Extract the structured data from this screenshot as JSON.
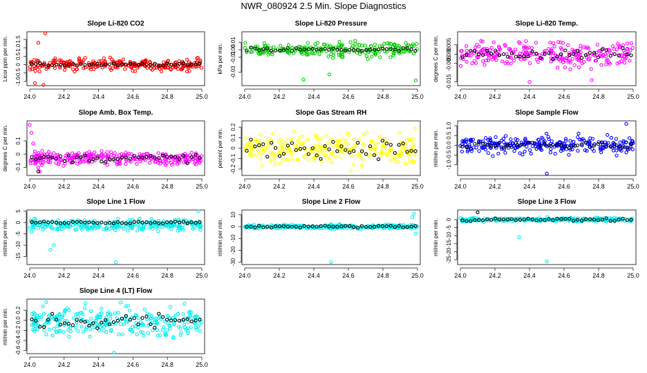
{
  "page_title": "NWR_080924  2.5 Min. Slope Diagnostics",
  "colors": {
    "black": "#000000",
    "red": "#ff0000",
    "green": "#00cc00",
    "magenta": "#ff00ff",
    "yellow": "#ffff00",
    "blue": "#0000ff",
    "cyan": "#00eeee"
  },
  "chart_data": [
    {
      "id": "p1",
      "type": "scatter",
      "title": "Slope Li-820 CO2",
      "ylabel": "Licor ppm per min.",
      "xlim": [
        24.0,
        25.0
      ],
      "ylim": [
        -1.25,
        1.95
      ],
      "xticks": [
        24.0,
        24.2,
        24.4,
        24.6,
        24.8,
        25.0
      ],
      "xtick_labels": [
        "24.0",
        "24.2",
        "24.4",
        "24.6",
        "24.8",
        "25.0"
      ],
      "yticks": [
        -1.0,
        -0.5,
        0.0,
        0.5,
        1.0,
        1.5
      ],
      "ytick_labels": [
        "-1.0",
        "-0.5",
        "0",
        "0.5",
        "1.0",
        "1.5"
      ],
      "series": [
        {
          "name": "all",
          "color": "red",
          "center": 0.0,
          "spread": 0.25,
          "n": 260,
          "x": [
            24.09,
            24.03,
            24.05,
            24.08
          ],
          "y": [
            1.85,
            -1.1,
            1.3,
            -1.2
          ]
        },
        {
          "name": "avg",
          "color": "black",
          "center": 0.0,
          "spread": 0.05,
          "n": 42
        }
      ]
    },
    {
      "id": "p2",
      "type": "scatter",
      "title": "Slope Li-820 Pressure",
      "ylabel": "kPa per min.",
      "xlim": [
        24.0,
        25.0
      ],
      "ylim": [
        -0.048,
        0.024
      ],
      "xticks": [
        24.0,
        24.2,
        24.4,
        24.6,
        24.8,
        25.0
      ],
      "xtick_labels": [
        "24.0",
        "24.2",
        "24.4",
        "24.6",
        "24.8",
        "25.0"
      ],
      "yticks": [
        -0.03,
        -0.01,
        0.0,
        0.01
      ],
      "ytick_labels": [
        "-0.03",
        "-0.01",
        "0.00",
        "0.01"
      ],
      "series": [
        {
          "name": "all",
          "color": "green",
          "center": 0.0,
          "spread": 0.007,
          "n": 220,
          "x": [
            24.34,
            24.99,
            24.49
          ],
          "y": [
            -0.04,
            -0.041,
            -0.033
          ]
        },
        {
          "name": "avg",
          "color": "black",
          "center": 0.0,
          "spread": 0.002,
          "n": 42
        }
      ]
    },
    {
      "id": "p3",
      "type": "scatter",
      "title": "Slope Li-820 Temp.",
      "ylabel": "degrees C per min.",
      "xlim": [
        24.0,
        25.0
      ],
      "ylim": [
        -0.017,
        0.012
      ],
      "xticks": [
        24.0,
        24.2,
        24.4,
        24.6,
        24.8,
        25.0
      ],
      "xtick_labels": [
        "24.0",
        "24.2",
        "24.4",
        "24.6",
        "24.8",
        "25.0"
      ],
      "yticks": [
        -0.015,
        -0.005,
        0.0,
        0.005
      ],
      "ytick_labels": [
        "-0.015",
        "-0.005",
        "0.000",
        "0.005"
      ],
      "series": [
        {
          "name": "all",
          "color": "magenta",
          "center": 0.0,
          "spread": 0.0045,
          "n": 260,
          "x": [
            24.4,
            24.76
          ],
          "y": [
            -0.015,
            -0.014
          ]
        },
        {
          "name": "avg",
          "color": "black",
          "center": 0.0,
          "spread": 0.002,
          "n": 42
        }
      ]
    },
    {
      "id": "p4",
      "type": "scatter",
      "title": "Slope Amb. Box Temp.",
      "ylabel": "degrees C per min.",
      "xlim": [
        24.0,
        25.0
      ],
      "ylim": [
        -0.16,
        0.25
      ],
      "xticks": [
        24.0,
        24.2,
        24.4,
        24.6,
        24.8,
        25.0
      ],
      "xtick_labels": [
        "24.0",
        "24.2",
        "24.4",
        "24.6",
        "24.8",
        "25.0"
      ],
      "yticks": [
        -0.1,
        0.0,
        0.1
      ],
      "ytick_labels": [
        "-0.1",
        "0",
        "0.1"
      ],
      "series": [
        {
          "name": "all",
          "color": "magenta",
          "center": -0.03,
          "spread": 0.035,
          "n": 280,
          "x": [
            24.0,
            24.01,
            24.02,
            24.03,
            24.04,
            24.05,
            24.06,
            24.07,
            24.08
          ],
          "y": [
            0.22,
            0.16,
            0.08,
            0.02,
            -0.05,
            -0.1,
            -0.13,
            -0.08,
            -0.06
          ]
        },
        {
          "name": "avg",
          "color": "black",
          "center": -0.03,
          "spread": 0.02,
          "n": 42,
          "x": [
            24.05
          ],
          "y": [
            -0.13
          ]
        }
      ]
    },
    {
      "id": "p5",
      "type": "scatter",
      "title": "Slope Gas Stream RH",
      "ylabel": "percent per min.",
      "xlim": [
        24.0,
        25.0
      ],
      "ylim": [
        -0.26,
        0.26
      ],
      "xticks": [
        24.0,
        24.2,
        24.4,
        24.6,
        24.8,
        25.0
      ],
      "xtick_labels": [
        "24.0",
        "24.2",
        "24.4",
        "24.6",
        "24.8",
        "25.0"
      ],
      "yticks": [
        -0.2,
        -0.1,
        0.0,
        0.1,
        0.2
      ],
      "ytick_labels": [
        "-0.2",
        "-0.1",
        "0",
        "0.1",
        "0.2"
      ],
      "series": [
        {
          "name": "all",
          "color": "yellow",
          "center": 0.0,
          "spread": 0.1,
          "n": 260
        },
        {
          "name": "avg",
          "color": "black",
          "center": 0.0,
          "spread": 0.06,
          "n": 42
        }
      ]
    },
    {
      "id": "p6",
      "type": "scatter",
      "title": "Slope Sample Flow",
      "ylabel": "ml/min per min.",
      "xlim": [
        24.0,
        25.0
      ],
      "ylim": [
        -1.55,
        1.25
      ],
      "xticks": [
        24.0,
        24.2,
        24.4,
        24.6,
        24.8,
        25.0
      ],
      "xtick_labels": [
        "24.0",
        "24.2",
        "24.4",
        "24.6",
        "24.8",
        "25.0"
      ],
      "yticks": [
        -1.0,
        -0.5,
        0.0,
        0.5,
        1.0
      ],
      "ytick_labels": [
        "-1.0",
        "-0.5",
        "0.0",
        "0.5",
        "1.0"
      ],
      "series": [
        {
          "name": "all",
          "color": "blue",
          "center": 0.0,
          "spread": 0.3,
          "n": 260,
          "x": [
            24.96,
            24.5
          ],
          "y": [
            1.1,
            -1.45
          ]
        },
        {
          "name": "avg",
          "color": "black",
          "center": 0.0,
          "spread": 0.12,
          "n": 42
        }
      ]
    },
    {
      "id": "p7",
      "type": "scatter",
      "title": "Slope Line 1 Flow",
      "ylabel": "ml/min per min.",
      "xlim": [
        24.0,
        25.0
      ],
      "ylim": [
        -18.5,
        5.5
      ],
      "xticks": [
        24.0,
        24.2,
        24.4,
        24.6,
        24.8,
        25.0
      ],
      "xtick_labels": [
        "24.0",
        "24.2",
        "24.4",
        "24.6",
        "24.8",
        "25.0"
      ],
      "yticks": [
        -15,
        -10,
        -5,
        0,
        5
      ],
      "ytick_labels": [
        "-15",
        "-10",
        "-5",
        "0",
        "5"
      ],
      "series": [
        {
          "name": "all",
          "color": "cyan",
          "center": -1.0,
          "spread": 1.8,
          "n": 280,
          "x": [
            24.5,
            24.12,
            24.14,
            24.98,
            24.01
          ],
          "y": [
            -17.5,
            -12,
            -10,
            5,
            -4
          ]
        },
        {
          "name": "avg",
          "color": "black",
          "center": 0.0,
          "spread": 0.3,
          "n": 42
        }
      ]
    },
    {
      "id": "p8",
      "type": "scatter",
      "title": "Slope Line 2 Flow",
      "ylabel": "ml/min per min.",
      "xlim": [
        24.0,
        25.0
      ],
      "ylim": [
        -32,
        14
      ],
      "xticks": [
        24.0,
        24.2,
        24.4,
        24.6,
        24.8,
        25.0
      ],
      "xtick_labels": [
        "24.0",
        "24.2",
        "24.4",
        "24.6",
        "24.8",
        "25.0"
      ],
      "yticks": [
        -30,
        -20,
        -10,
        0,
        10
      ],
      "ytick_labels": [
        "-30",
        "-20",
        "-10",
        "0",
        "10"
      ],
      "series": [
        {
          "name": "all",
          "color": "cyan",
          "center": 0.0,
          "spread": 1.2,
          "n": 280,
          "x": [
            24.5,
            24.97,
            24.98,
            24.99
          ],
          "y": [
            -30,
            8,
            11,
            -6
          ]
        },
        {
          "name": "avg",
          "color": "black",
          "center": 0.0,
          "spread": 0.6,
          "n": 42
        }
      ]
    },
    {
      "id": "p9",
      "type": "scatter",
      "title": "Slope Line 3 Flow",
      "ylabel": "ml/min per min.",
      "xlim": [
        24.0,
        25.0
      ],
      "ylim": [
        -28,
        6
      ],
      "xticks": [
        24.0,
        24.2,
        24.4,
        24.6,
        24.8,
        25.0
      ],
      "xtick_labels": [
        "24.0",
        "24.2",
        "24.4",
        "24.6",
        "24.8",
        "25.0"
      ],
      "yticks": [
        -25,
        -20,
        -15,
        -10,
        -5,
        0
      ],
      "ytick_labels": [
        "-25",
        "-20",
        "-15",
        "-10",
        "-5",
        "0"
      ],
      "series": [
        {
          "name": "all",
          "color": "cyan",
          "center": 0.0,
          "spread": 0.8,
          "n": 280,
          "x": [
            24.5,
            24.34
          ],
          "y": [
            -26,
            -11
          ]
        },
        {
          "name": "avg",
          "color": "black",
          "center": 0.0,
          "spread": 0.6,
          "n": 42,
          "x": [
            24.1
          ],
          "y": [
            4.5
          ]
        }
      ]
    },
    {
      "id": "p10",
      "type": "scatter",
      "title": "Slope Line 4 (LT) Flow",
      "ylabel": "ml/min per min.",
      "xlim": [
        24.0,
        25.0
      ],
      "ylim": [
        -0.66,
        0.42
      ],
      "xticks": [
        24.0,
        24.2,
        24.4,
        24.6,
        24.8,
        25.0
      ],
      "xtick_labels": [
        "24.0",
        "24.2",
        "24.4",
        "24.6",
        "24.8",
        "25.0"
      ],
      "yticks": [
        -0.6,
        -0.4,
        -0.2,
        0.0,
        0.2
      ],
      "ytick_labels": [
        "-0.6",
        "-0.4",
        "-0.2",
        "0.0",
        "0.2"
      ],
      "series": [
        {
          "name": "all",
          "color": "cyan",
          "center": -0.03,
          "spread": 0.2,
          "n": 280,
          "x": [
            24.49
          ],
          "y": [
            -0.64
          ]
        },
        {
          "name": "avg",
          "color": "black",
          "center": -0.02,
          "spread": 0.12,
          "n": 42
        }
      ]
    }
  ]
}
